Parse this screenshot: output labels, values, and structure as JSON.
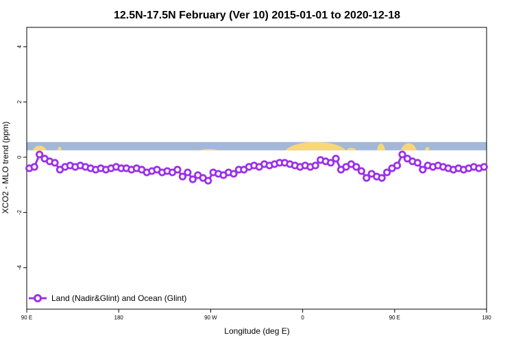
{
  "chart_data": {
    "type": "line",
    "title": "12.5N-17.5N February (Ver 10)   2015-01-01 to 2020-12-18",
    "xlabel": "Longitude (deg E)",
    "ylabel": "XCO2 - MLO trend (ppm)",
    "xlim": [
      90,
      540
    ],
    "ylim": [
      -5.5,
      4.7
    ],
    "x_ticks": [
      {
        "value": 90,
        "label": "90 E"
      },
      {
        "value": 180,
        "label": "180"
      },
      {
        "value": 270,
        "label": "90 W"
      },
      {
        "value": 360,
        "label": "0"
      },
      {
        "value": 450,
        "label": "90 E"
      },
      {
        "value": 540,
        "label": "180"
      }
    ],
    "y_ticks": [
      {
        "value": 4,
        "label": "4"
      },
      {
        "value": 2,
        "label": "2"
      },
      {
        "value": 0,
        "label": "0"
      },
      {
        "value": -2,
        "label": "-2"
      },
      {
        "value": -4,
        "label": "-4"
      }
    ],
    "grid": false,
    "legend": {
      "position": "bottom-left"
    },
    "land_mask_band": {
      "y_range": [
        0.25,
        0.55
      ],
      "ocean_color": "#a3b8d8",
      "land_color": "#f7d77a"
    },
    "series": [
      {
        "name": "Land (Nadir&Glint) and Ocean (Glint)",
        "color": "#9b30e8",
        "x": [
          92.5,
          97.5,
          102.5,
          107.5,
          112.5,
          117.5,
          122.5,
          127.5,
          132.5,
          137.5,
          142.5,
          147.5,
          152.5,
          157.5,
          162.5,
          167.5,
          172.5,
          177.5,
          182.5,
          187.5,
          192.5,
          197.5,
          202.5,
          207.5,
          212.5,
          217.5,
          222.5,
          227.5,
          232.5,
          237.5,
          242.5,
          247.5,
          252.5,
          257.5,
          262.5,
          267.5,
          272.5,
          277.5,
          282.5,
          287.5,
          292.5,
          297.5,
          302.5,
          307.5,
          312.5,
          317.5,
          322.5,
          327.5,
          332.5,
          337.5,
          342.5,
          347.5,
          352.5,
          357.5,
          362.5,
          367.5,
          372.5,
          377.5,
          382.5,
          387.5,
          392.5,
          397.5,
          402.5,
          407.5,
          412.5,
          417.5,
          422.5,
          427.5,
          432.5,
          437.5,
          442.5,
          447.5,
          452.5,
          457.5,
          462.5,
          467.5,
          472.5,
          477.5,
          482.5,
          487.5,
          492.5,
          497.5,
          502.5,
          507.5,
          512.5,
          517.5,
          522.5,
          527.5,
          532.5,
          537.5
        ],
        "values": [
          -0.4,
          -0.35,
          0.1,
          -0.05,
          -0.15,
          -0.2,
          -0.45,
          -0.35,
          -0.3,
          -0.35,
          -0.3,
          -0.35,
          -0.4,
          -0.45,
          -0.4,
          -0.45,
          -0.4,
          -0.35,
          -0.4,
          -0.4,
          -0.45,
          -0.4,
          -0.45,
          -0.55,
          -0.5,
          -0.45,
          -0.55,
          -0.5,
          -0.55,
          -0.45,
          -0.7,
          -0.55,
          -0.8,
          -0.65,
          -0.75,
          -0.85,
          -0.55,
          -0.6,
          -0.65,
          -0.55,
          -0.6,
          -0.45,
          -0.45,
          -0.35,
          -0.3,
          -0.35,
          -0.25,
          -0.3,
          -0.25,
          -0.2,
          -0.2,
          -0.25,
          -0.3,
          -0.35,
          -0.3,
          -0.35,
          -0.3,
          -0.1,
          -0.15,
          -0.2,
          -0.05,
          -0.45,
          -0.35,
          -0.25,
          -0.35,
          -0.5,
          -0.75,
          -0.6,
          -0.7,
          -0.75,
          -0.55,
          -0.4,
          -0.3,
          0.1,
          -0.05,
          -0.15,
          -0.2,
          -0.45,
          -0.3,
          -0.35,
          -0.3,
          -0.35,
          -0.4,
          -0.45,
          -0.4,
          -0.45,
          -0.4,
          -0.35,
          -0.4,
          -0.35
        ]
      }
    ]
  }
}
